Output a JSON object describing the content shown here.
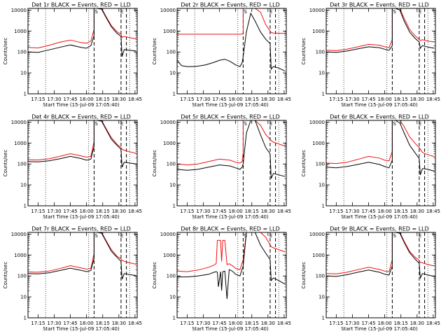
{
  "figure": {
    "time_ticks": [
      "17:15",
      "17:30",
      "17:45",
      "18:00",
      "18:15",
      "18:30",
      "18:45"
    ],
    "time_tick_minutes": [
      15,
      30,
      45,
      60,
      75,
      90,
      105
    ],
    "x_range_minutes": [
      5.67,
      107
    ],
    "y_ticks": [
      "10000",
      "1000",
      "100",
      "10",
      "1"
    ],
    "y_tick_values": [
      10000,
      1000,
      100,
      10,
      1
    ],
    "y_range": [
      1,
      12000
    ],
    "y_scale": "log",
    "ylabel": "Counts/sec",
    "xlabel": "Start Time (15-Jul-09 17:05:40)",
    "legend_text": "BLACK = Events, RED = LLD",
    "colors": {
      "events": "#000000",
      "lld": "#ee1111",
      "axes": "#000000"
    },
    "dotted_lines_minutes": [
      22,
      62,
      100
    ],
    "dashed_lines_minutes": [
      67,
      92,
      97
    ],
    "region_markers": [
      "S",
      "E"
    ]
  },
  "chart_data": [
    {
      "type": "line",
      "title": "Det 1r",
      "xlabel": "Start Time (15-Jul-09 17:05:40)",
      "ylabel": "Counts/sec",
      "ylim": [
        1,
        12000
      ],
      "y_scale": "log",
      "series": [
        {
          "name": "Events",
          "x": [
            6,
            15,
            25,
            35,
            45,
            55,
            60,
            64,
            67,
            67,
            70,
            74,
            78,
            83,
            88,
            92,
            93,
            95,
            100,
            106
          ],
          "y": [
            100,
            95,
            125,
            165,
            215,
            165,
            150,
            200,
            600,
            12000,
            12000,
            11000,
            4500,
            1600,
            800,
            550,
            60,
            130,
            120,
            110
          ]
        },
        {
          "name": "LLD",
          "x": [
            6,
            15,
            25,
            35,
            45,
            55,
            60,
            64,
            67,
            67,
            70,
            74,
            78,
            83,
            88,
            92,
            93,
            95,
            100,
            106
          ],
          "y": [
            165,
            155,
            205,
            290,
            370,
            280,
            260,
            330,
            1200,
            12000,
            12000,
            12000,
            5000,
            1800,
            950,
            700,
            500,
            550,
            480,
            420
          ]
        }
      ]
    },
    {
      "type": "line",
      "title": "Det 2r",
      "xlabel": "Start Time (15-Jul-09 17:05:40)",
      "ylabel": "Counts/sec",
      "ylim": [
        1,
        12000
      ],
      "y_scale": "log",
      "series": [
        {
          "name": "Events",
          "x": [
            6,
            10,
            15,
            20,
            25,
            32,
            40,
            45,
            50,
            55,
            60,
            64,
            66,
            67,
            70,
            74,
            78,
            83,
            88,
            92,
            93,
            95,
            100,
            106
          ],
          "y": [
            38,
            22,
            20,
            20,
            21,
            24,
            32,
            40,
            45,
            35,
            24,
            20,
            30,
            60,
            900,
            7000,
            3000,
            900,
            400,
            250,
            15,
            20,
            17,
            12
          ]
        },
        {
          "name": "LLD",
          "x": [
            6,
            15,
            30,
            45,
            60,
            66,
            67,
            67,
            70,
            74,
            78,
            83,
            88,
            92,
            93,
            95,
            100,
            106
          ],
          "y": [
            700,
            700,
            700,
            700,
            700,
            700,
            800,
            12000,
            12000,
            12000,
            12000,
            8000,
            2000,
            1000,
            850,
            800,
            780,
            760
          ]
        }
      ]
    },
    {
      "type": "line",
      "title": "Det 3r",
      "xlabel": "Start Time (15-Jul-09 17:05:40)",
      "ylabel": "Counts/sec",
      "ylim": [
        1,
        12000
      ],
      "y_scale": "log",
      "series": [
        {
          "name": "Events",
          "x": [
            6,
            15,
            25,
            35,
            45,
            55,
            60,
            64,
            67,
            67,
            70,
            74,
            78,
            83,
            88,
            92,
            93,
            95,
            100,
            106
          ],
          "y": [
            100,
            95,
            110,
            140,
            175,
            160,
            135,
            120,
            200,
            12000,
            12000,
            10000,
            3000,
            900,
            450,
            300,
            150,
            200,
            170,
            150
          ]
        },
        {
          "name": "LLD",
          "x": [
            6,
            15,
            25,
            35,
            45,
            55,
            60,
            64,
            67,
            67,
            70,
            74,
            78,
            83,
            88,
            92,
            93,
            95,
            100,
            106
          ],
          "y": [
            120,
            115,
            135,
            175,
            230,
            210,
            175,
            160,
            400,
            12000,
            12000,
            12000,
            4000,
            1200,
            600,
            400,
            350,
            380,
            330,
            300
          ]
        }
      ]
    },
    {
      "type": "line",
      "title": "Det 4r",
      "xlabel": "Start Time (15-Jul-09 17:05:40)",
      "ylabel": "Counts/sec",
      "ylim": [
        1,
        12000
      ],
      "y_scale": "log",
      "series": [
        {
          "name": "Events",
          "x": [
            6,
            15,
            25,
            35,
            45,
            55,
            60,
            64,
            67,
            67,
            70,
            74,
            78,
            83,
            88,
            92,
            93,
            95,
            100,
            106
          ],
          "y": [
            130,
            125,
            140,
            175,
            230,
            180,
            150,
            170,
            700,
            12000,
            12000,
            11000,
            4500,
            1500,
            800,
            500,
            70,
            120,
            110,
            100
          ]
        },
        {
          "name": "LLD",
          "x": [
            6,
            15,
            25,
            35,
            45,
            55,
            60,
            64,
            67,
            67,
            70,
            74,
            78,
            83,
            88,
            92,
            93,
            95,
            100,
            106
          ],
          "y": [
            160,
            155,
            175,
            230,
            310,
            240,
            210,
            230,
            1200,
            12000,
            12000,
            12000,
            5000,
            1800,
            900,
            600,
            500,
            450,
            380,
            320
          ]
        }
      ]
    },
    {
      "type": "line",
      "title": "Det 5r",
      "xlabel": "Start Time (15-Jul-09 17:05:40)",
      "ylabel": "Counts/sec",
      "ylim": [
        1,
        12000
      ],
      "y_scale": "log",
      "series": [
        {
          "name": "Events",
          "x": [
            6,
            15,
            25,
            35,
            45,
            55,
            60,
            64,
            66,
            67,
            70,
            74,
            78,
            83,
            88,
            92,
            93,
            95,
            100,
            106
          ],
          "y": [
            55,
            50,
            55,
            70,
            90,
            80,
            65,
            55,
            70,
            100,
            3000,
            12000,
            12000,
            2500,
            600,
            300,
            20,
            35,
            30,
            25
          ]
        },
        {
          "name": "LLD",
          "x": [
            6,
            15,
            25,
            35,
            45,
            55,
            60,
            64,
            66,
            67,
            67,
            70,
            74,
            78,
            83,
            88,
            92,
            93,
            95,
            100,
            106
          ],
          "y": [
            100,
            90,
            100,
            130,
            170,
            150,
            120,
            110,
            130,
            350,
            12000,
            12000,
            12000,
            12000,
            7000,
            2500,
            1500,
            1300,
            1100,
            900,
            700
          ]
        }
      ]
    },
    {
      "type": "line",
      "title": "Det 6r",
      "xlabel": "Start Time (15-Jul-09 17:05:40)",
      "ylabel": "Counts/sec",
      "ylim": [
        1,
        12000
      ],
      "y_scale": "log",
      "series": [
        {
          "name": "Events",
          "x": [
            6,
            15,
            25,
            35,
            45,
            55,
            60,
            64,
            67,
            67,
            70,
            74,
            78,
            83,
            88,
            92,
            93,
            95,
            100,
            106
          ],
          "y": [
            70,
            65,
            75,
            95,
            120,
            95,
            75,
            65,
            150,
            12000,
            12000,
            9000,
            3000,
            800,
            350,
            180,
            30,
            60,
            55,
            45
          ]
        },
        {
          "name": "LLD",
          "x": [
            6,
            15,
            25,
            35,
            45,
            55,
            60,
            64,
            67,
            67,
            70,
            74,
            78,
            83,
            88,
            92,
            93,
            95,
            100,
            106
          ],
          "y": [
            110,
            105,
            120,
            165,
            230,
            190,
            150,
            140,
            400,
            12000,
            12000,
            12000,
            6000,
            2000,
            1000,
            600,
            500,
            350,
            280,
            220
          ]
        }
      ]
    },
    {
      "type": "line",
      "title": "Det 7r",
      "xlabel": "Start Time (15-Jul-09 17:05:40)",
      "ylabel": "Counts/sec",
      "ylim": [
        1,
        12000
      ],
      "y_scale": "log",
      "series": [
        {
          "name": "Events",
          "x": [
            6,
            15,
            25,
            35,
            45,
            55,
            60,
            64,
            67,
            67,
            70,
            74,
            78,
            83,
            88,
            92,
            93,
            95,
            100,
            106
          ],
          "y": [
            130,
            125,
            140,
            180,
            235,
            185,
            160,
            180,
            700,
            12000,
            12000,
            11000,
            4500,
            1500,
            800,
            500,
            70,
            130,
            115,
            105
          ]
        },
        {
          "name": "LLD",
          "x": [
            6,
            15,
            25,
            35,
            45,
            55,
            60,
            64,
            67,
            67,
            70,
            74,
            78,
            83,
            88,
            92,
            93,
            95,
            100,
            106
          ],
          "y": [
            155,
            150,
            170,
            225,
            310,
            240,
            210,
            230,
            1200,
            12000,
            12000,
            12000,
            5000,
            1800,
            900,
            650,
            550,
            500,
            420,
            360
          ]
        }
      ]
    },
    {
      "type": "line",
      "title": "Det 8r",
      "xlabel": "Start Time (15-Jul-09 17:05:40)",
      "ylabel": "Counts/sec",
      "ylim": [
        1,
        12000
      ],
      "y_scale": "log",
      "series": [
        {
          "name": "Events",
          "x": [
            6,
            15,
            25,
            35,
            40,
            42,
            43,
            44,
            46,
            47,
            48,
            50,
            52,
            54,
            56,
            58,
            60,
            64,
            67,
            70,
            74,
            78,
            83,
            88,
            92,
            93,
            95,
            100,
            106
          ],
          "y": [
            90,
            90,
            100,
            120,
            150,
            160,
            150,
            30,
            160,
            20,
            160,
            170,
            8,
            200,
            180,
            150,
            120,
            100,
            300,
            12000,
            12000,
            12000,
            3000,
            1200,
            600,
            60,
            80,
            60,
            40
          ]
        },
        {
          "name": "LLD",
          "x": [
            6,
            15,
            25,
            35,
            40,
            42,
            43,
            44,
            46,
            47,
            48,
            50,
            52,
            54,
            56,
            58,
            60,
            64,
            67,
            70,
            74,
            78,
            83,
            88,
            92,
            93,
            95,
            100,
            106
          ],
          "y": [
            170,
            160,
            190,
            260,
            330,
            400,
            5000,
            5000,
            5000,
            500,
            5000,
            5000,
            350,
            380,
            330,
            280,
            230,
            200,
            600,
            12000,
            12000,
            12000,
            12000,
            7000,
            3000,
            2500,
            2200,
            1800,
            1400
          ]
        }
      ]
    },
    {
      "type": "line",
      "title": "Det 9r",
      "xlabel": "Start Time (15-Jul-09 17:05:40)",
      "ylabel": "Counts/sec",
      "ylim": [
        1,
        12000
      ],
      "y_scale": "log",
      "series": [
        {
          "name": "Events",
          "x": [
            6,
            15,
            25,
            35,
            45,
            55,
            60,
            64,
            67,
            67,
            70,
            74,
            78,
            83,
            88,
            92,
            93,
            95,
            100,
            106
          ],
          "y": [
            100,
            95,
            115,
            150,
            190,
            150,
            120,
            110,
            300,
            12000,
            12000,
            11000,
            4000,
            1300,
            650,
            400,
            80,
            130,
            110,
            95
          ]
        },
        {
          "name": "LLD",
          "x": [
            6,
            15,
            25,
            35,
            45,
            55,
            60,
            64,
            67,
            67,
            70,
            74,
            78,
            83,
            88,
            92,
            93,
            95,
            100,
            106
          ],
          "y": [
            130,
            125,
            150,
            200,
            260,
            205,
            170,
            160,
            600,
            12000,
            12000,
            12000,
            4500,
            1500,
            800,
            550,
            450,
            420,
            350,
            300
          ]
        }
      ]
    }
  ]
}
